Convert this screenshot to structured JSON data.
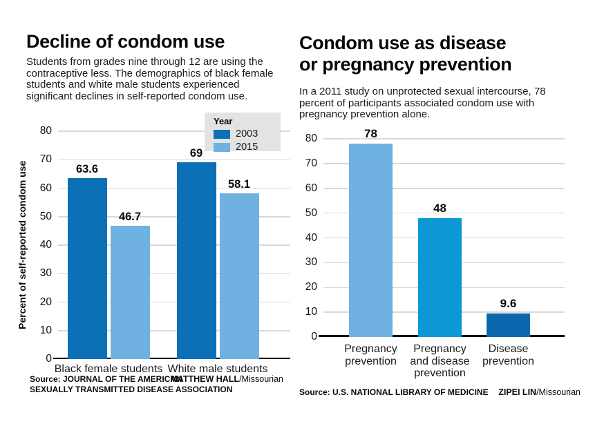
{
  "left": {
    "title": "Decline of condom use",
    "subtitle": "Students from grades nine through 12 are using the\ncontraceptive less. The demographics of black female\nstudents and white male students experienced\nsignificant declines in self-reported condom use.",
    "ylabel": "Percent of self-reported condom use",
    "source": "Source: JOURNAL OF THE AMERICAN\nSEXUALLY TRANSMITTED DISEASE ASSOCIATION",
    "credit_name": "MATTHEW HALL",
    "credit_suffix": "/Missourian"
  },
  "right": {
    "title": "Condom use as disease\nor pregnancy prevention",
    "subtitle": "In a 2011 study on unprotected sexual intercourse, 78\npercent of participants associated condom use with\npregnancy prevention alone.",
    "source": "Source: U.S. NATIONAL LIBRARY OF MEDICINE",
    "credit_name": "ZIPEI LIN",
    "credit_suffix": "/Missourian"
  },
  "colors": {
    "blue_2003": "#0b70b6",
    "blue_2015": "#6fb2e1",
    "blue_medium": "#0b98d5",
    "blue_dark": "#0b68ae",
    "grid": "#d9d9d9",
    "legend_bg": "#e3e3e3",
    "axis": "#000000"
  },
  "chart_data": [
    {
      "type": "bar",
      "title": "Decline of condom use",
      "ylabel": "Percent of self-reported condom use",
      "xlabel": "",
      "categories": [
        "Black female students",
        "White male students"
      ],
      "series": [
        {
          "name": "2003",
          "values": [
            63.6,
            69
          ],
          "color": "#0b70b6"
        },
        {
          "name": "2015",
          "values": [
            46.7,
            58.1
          ],
          "color": "#6fb2e1"
        }
      ],
      "value_labels": [
        [
          "63.6",
          "69"
        ],
        [
          "46.7",
          "58.1"
        ]
      ],
      "ylim": [
        0,
        80
      ],
      "yticks": [
        0,
        10,
        20,
        30,
        40,
        50,
        60,
        70,
        80
      ],
      "grid": true,
      "legend": {
        "title": "Year",
        "position": "top-right"
      }
    },
    {
      "type": "bar",
      "title": "Condom use as disease or pregnancy prevention",
      "xlabel": "",
      "ylabel": "",
      "categories": [
        "Pregnancy\nprevention",
        "Pregnancy\nand disease\nprevention",
        "Disease\nprevention"
      ],
      "values": [
        78,
        48,
        9.6
      ],
      "value_labels": [
        "78",
        "48",
        "9.6"
      ],
      "colors": [
        "#6fb2e1",
        "#0b98d5",
        "#0b68ae"
      ],
      "ylim": [
        0,
        80
      ],
      "yticks": [
        0,
        10,
        20,
        30,
        40,
        50,
        60,
        70,
        80
      ],
      "grid": true,
      "legend_position": "none"
    }
  ]
}
